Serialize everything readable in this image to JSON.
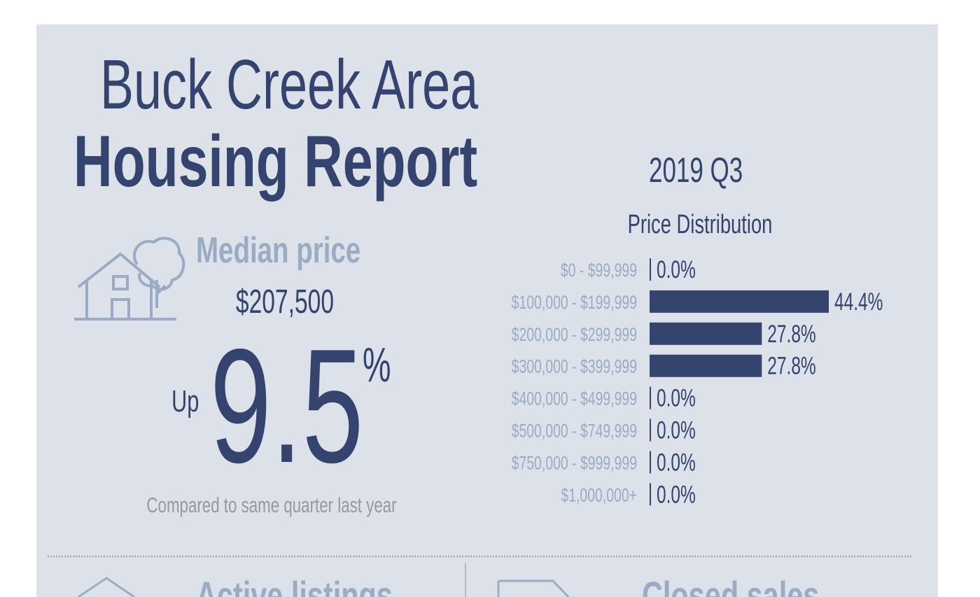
{
  "header": {
    "title_line1": "Buck Creek Area",
    "title_line2": "Housing Report",
    "period": "2019 Q3"
  },
  "median": {
    "label": "Median price",
    "value": "$207,500",
    "change_prefix": "Up",
    "change": 9.5,
    "change_unit": "%",
    "note": "Compared to same quarter last year"
  },
  "chart_data": {
    "type": "bar",
    "orientation": "horizontal",
    "title": "Price Distribution",
    "categories": [
      "$0 - $99,999",
      "$100,000 - $199,999",
      "$200,000 - $299,999",
      "$300,000 - $399,999",
      "$400,000 - $499,999",
      "$500,000 - $749,999",
      "$750,000 - $999,999",
      "$1,000,000+"
    ],
    "values": [
      0,
      44.4,
      27.8,
      27.8,
      0,
      0,
      0,
      0
    ],
    "value_labels": [
      "0.0%",
      "44.4%",
      "27.8%",
      "27.8%",
      "0.0%",
      "0.0%",
      "0.0%",
      "0.0%"
    ],
    "color": "#34446e"
  },
  "sections": [
    "Active listings",
    "Closed sales"
  ]
}
